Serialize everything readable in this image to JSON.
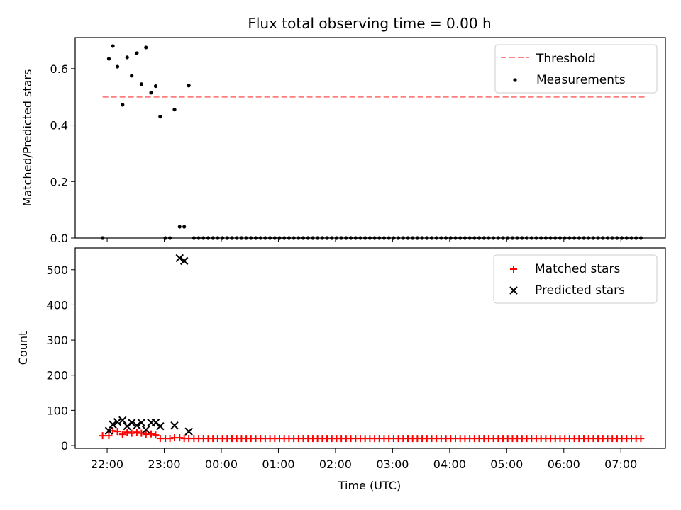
{
  "chart_data": {
    "title": "Flux total observing time = 0.00 h",
    "xlabel": "Time (UTC)",
    "x_tick_labels": [
      "22:00",
      "23:00",
      "00:00",
      "01:00",
      "02:00",
      "03:00",
      "04:00",
      "05:00",
      "06:00",
      "07:00"
    ],
    "x_unit": "hours since 22:00 UTC (axis ticks label clock time)",
    "xlim": [
      -0.56,
      9.78
    ],
    "panels": [
      {
        "type": "scatter",
        "ylabel": "Matched/Predicted stars",
        "ylim": [
          0,
          0.71
        ],
        "yticks": [
          0.0,
          0.2,
          0.4,
          0.6
        ],
        "ytick_labels": [
          "0.0",
          "0.2",
          "0.4",
          "0.6"
        ],
        "legend_position": "top-right",
        "series": [
          {
            "name": "Threshold",
            "kind": "dashed-line",
            "color": "#ff7f7f",
            "x": [
              -0.08,
              9.42
            ],
            "y": [
              0.5,
              0.5
            ]
          },
          {
            "name": "Measurements",
            "kind": "dots",
            "color": "#000000",
            "x": [
              -0.08,
              0.03,
              0.1,
              0.18,
              0.27,
              0.35,
              0.43,
              0.52,
              0.6,
              0.68,
              0.77,
              0.85,
              0.93,
              1.02,
              1.1,
              1.18,
              1.27,
              1.35,
              1.43
            ],
            "y": [
              0.0,
              0.635,
              0.68,
              0.607,
              0.472,
              0.64,
              0.575,
              0.655,
              0.545,
              0.675,
              0.515,
              0.538,
              0.43,
              0.0,
              0.0,
              0.455,
              0.04,
              0.04,
              0.54
            ],
            "zero_from": 1.52,
            "zero_to": 9.42,
            "zero_step": 0.0833
          }
        ]
      },
      {
        "type": "scatter",
        "ylabel": "Count",
        "ylim": [
          -8,
          562
        ],
        "yticks": [
          0,
          100,
          200,
          300,
          400,
          500
        ],
        "ytick_labels": [
          "0",
          "100",
          "200",
          "300",
          "400",
          "500"
        ],
        "legend_position": "top-right",
        "series": [
          {
            "name": "Matched stars",
            "kind": "plus",
            "color": "#ff0000",
            "x": [
              -0.08,
              0.03,
              0.1,
              0.18,
              0.27,
              0.35,
              0.43,
              0.52,
              0.6,
              0.68,
              0.77,
              0.85,
              0.93,
              1.02,
              1.1,
              1.18,
              1.27,
              1.35,
              1.43
            ],
            "y": [
              28,
              28,
              42,
              40,
              32,
              38,
              35,
              38,
              35,
              32,
              33,
              30,
              20,
              20,
              20,
              22,
              22,
              20,
              20
            ],
            "flat_value": 20,
            "flat_from": 1.52,
            "flat_to": 9.42,
            "flat_step": 0.0833
          },
          {
            "name": "Predicted stars",
            "kind": "x",
            "color": "#000000",
            "x": [
              0.03,
              0.1,
              0.18,
              0.27,
              0.35,
              0.43,
              0.52,
              0.6,
              0.68,
              0.77,
              0.85,
              0.93,
              1.18,
              1.27,
              1.35,
              1.43
            ],
            "y": [
              42,
              60,
              67,
              72,
              55,
              65,
              57,
              65,
              45,
              65,
              65,
              55,
              57,
              533,
              525,
              40
            ]
          }
        ]
      }
    ]
  }
}
